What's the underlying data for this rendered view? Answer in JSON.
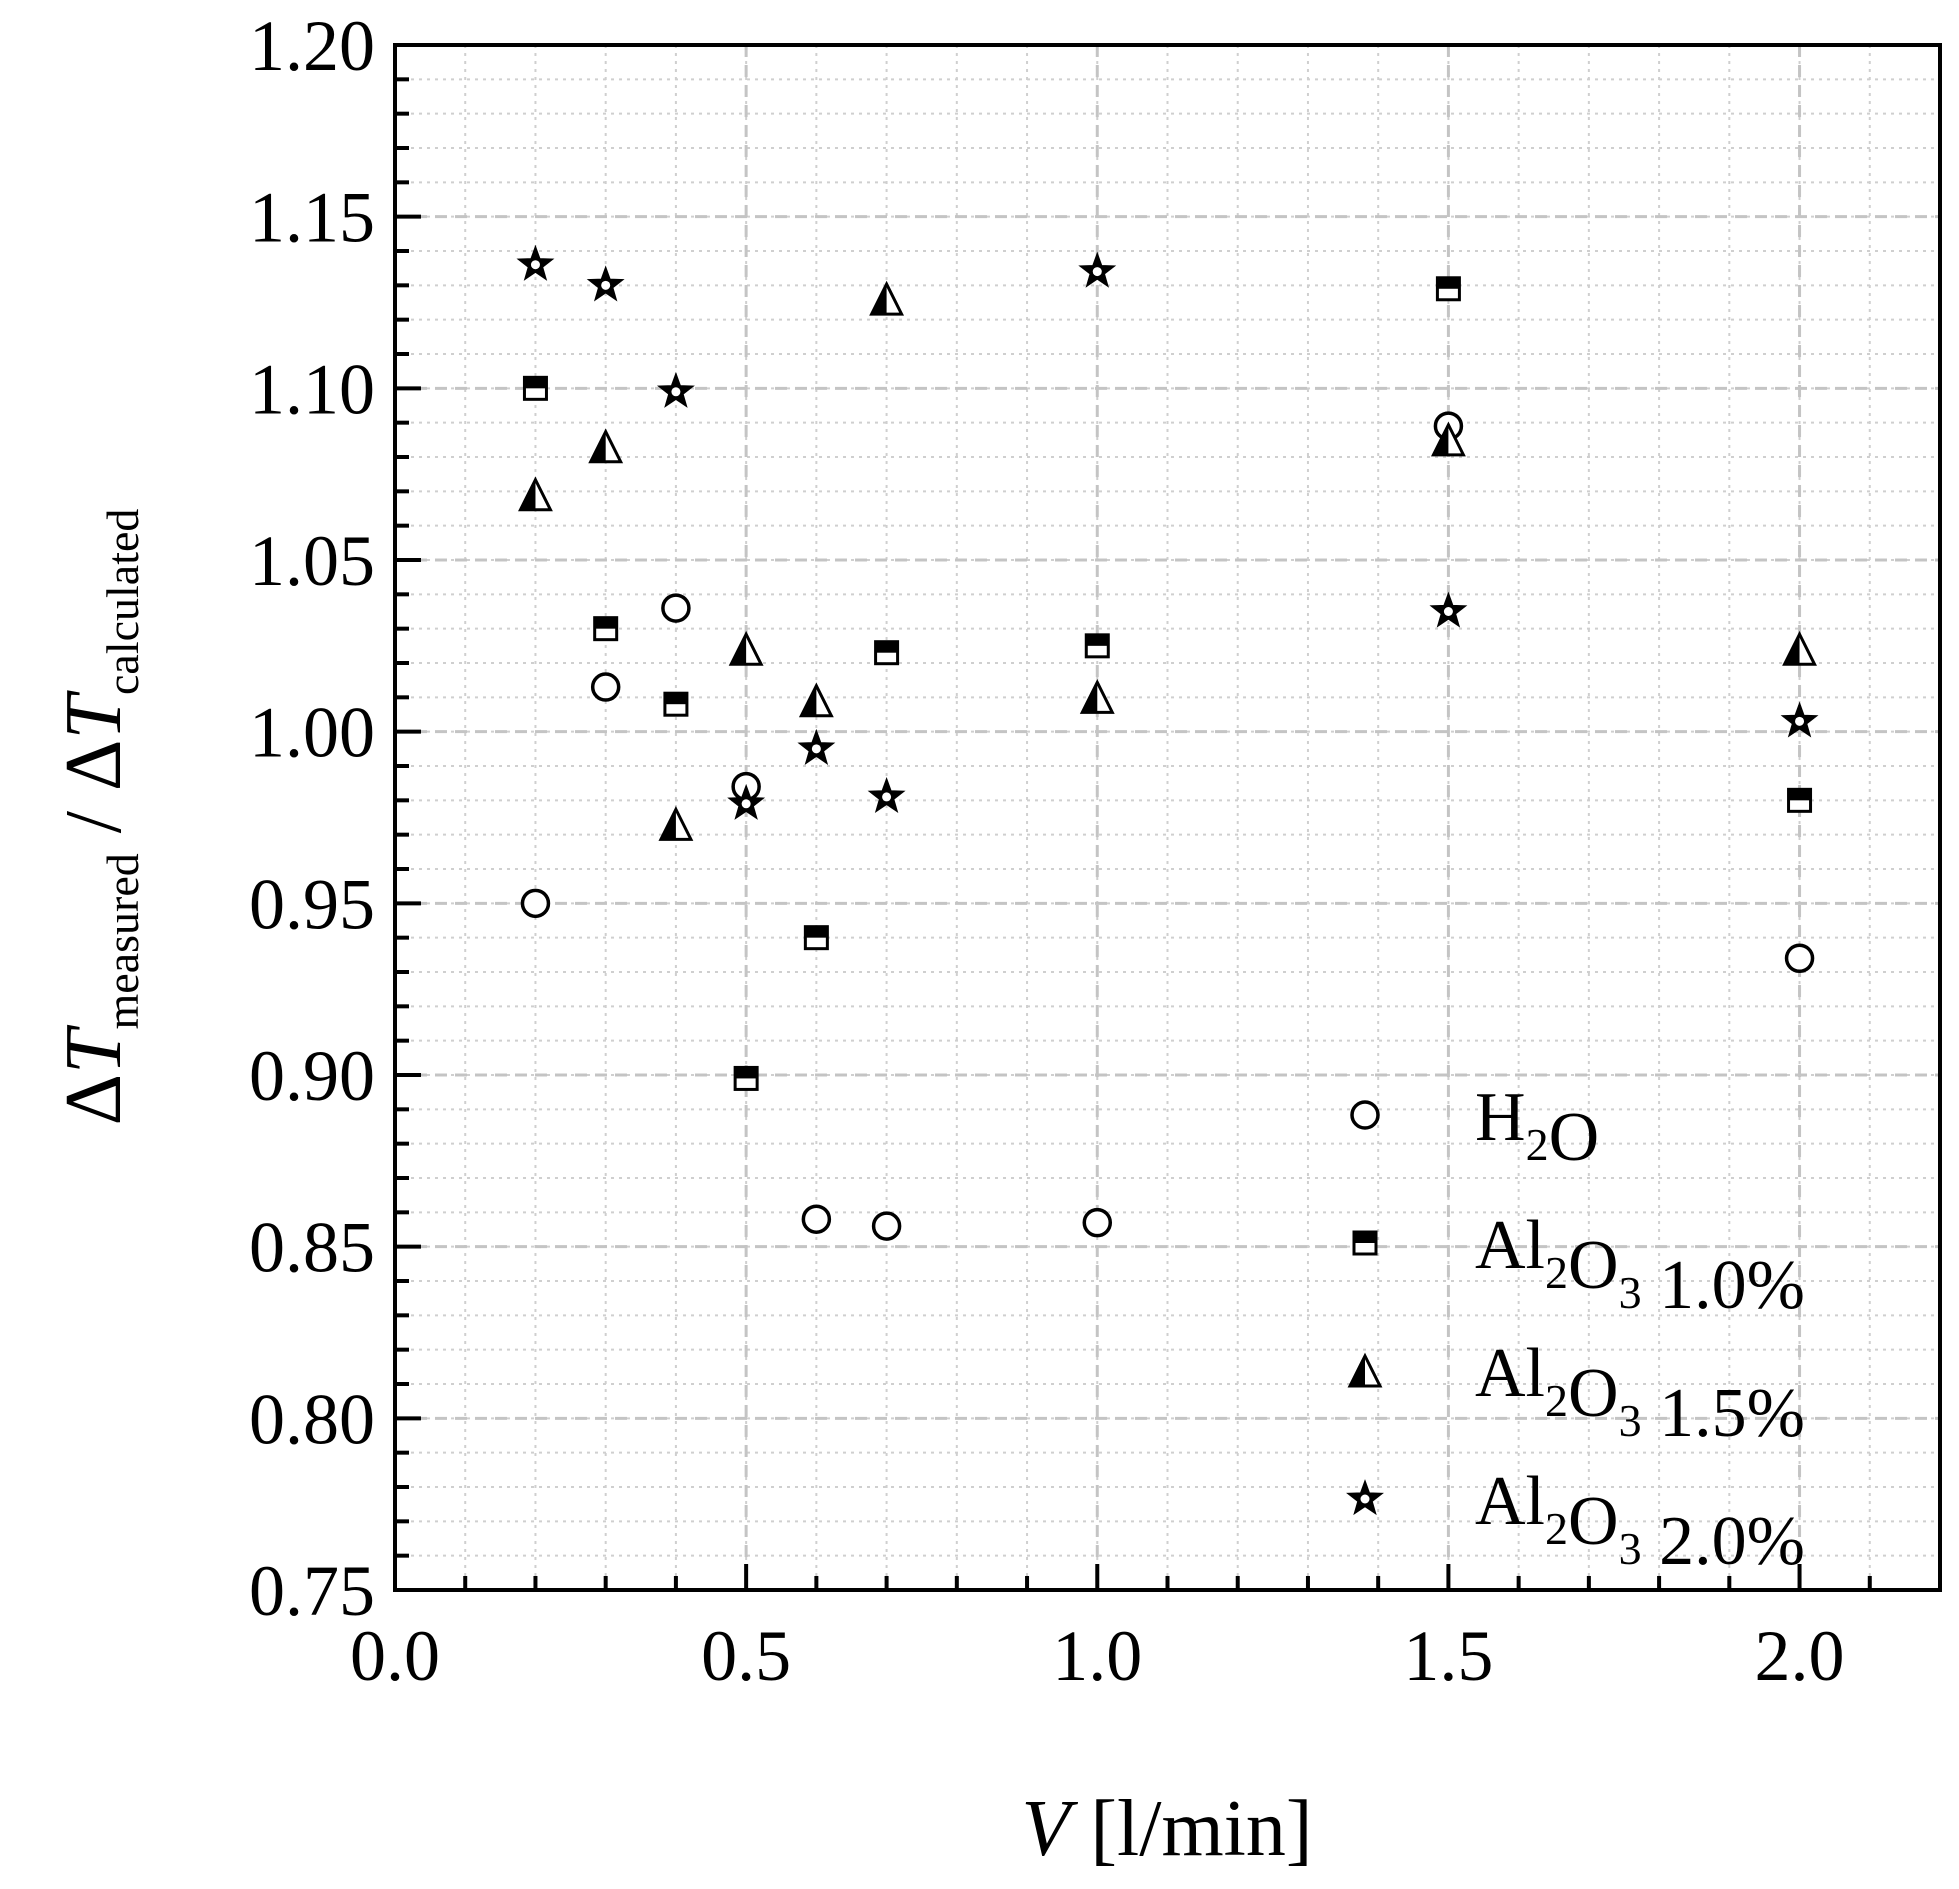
{
  "chart_data": {
    "type": "scatter",
    "title": "",
    "xlabel": {
      "var": "V",
      "unit": " [l/min]"
    },
    "ylabel": {
      "delta": "Δ",
      "var": "T",
      "sub1": "measured",
      "sep": " / ",
      "sub2": "calculated"
    },
    "xlim": [
      0.0,
      2.2
    ],
    "ylim": [
      0.75,
      1.2
    ],
    "x_ticks": [
      "0.0",
      "0.5",
      "1.0",
      "1.5",
      "2.0"
    ],
    "x_tick_values": [
      0.0,
      0.5,
      1.0,
      1.5,
      2.0
    ],
    "y_ticks": [
      "0.75",
      "0.80",
      "0.85",
      "0.90",
      "0.95",
      "1.00",
      "1.05",
      "1.10",
      "1.15",
      "1.20"
    ],
    "y_tick_values": [
      0.75,
      0.8,
      0.85,
      0.9,
      0.95,
      1.0,
      1.05,
      1.1,
      1.15,
      1.2
    ],
    "grid": true,
    "legend_position": "bottom-right",
    "series": [
      {
        "name": "H2O",
        "label_parts": [
          {
            "t": "H"
          },
          {
            "t": "2",
            "sub": true
          },
          {
            "t": "O"
          }
        ],
        "marker": "circle",
        "x": [
          0.2,
          0.3,
          0.4,
          0.5,
          0.6,
          0.7,
          1.0,
          1.5,
          2.0
        ],
        "y": [
          0.95,
          1.013,
          1.036,
          0.984,
          0.858,
          0.856,
          0.857,
          1.089,
          0.934
        ]
      },
      {
        "name": "Al2O3 1.0%",
        "label_parts": [
          {
            "t": "Al"
          },
          {
            "t": "2",
            "sub": true
          },
          {
            "t": "O"
          },
          {
            "t": "3",
            "sub": true
          },
          {
            "t": " 1.0%"
          }
        ],
        "marker": "square-half",
        "x": [
          0.2,
          0.3,
          0.4,
          0.5,
          0.6,
          0.7,
          1.0,
          1.5,
          2.0
        ],
        "y": [
          1.1,
          1.03,
          1.008,
          0.899,
          0.94,
          1.023,
          1.025,
          1.129,
          0.98
        ]
      },
      {
        "name": "Al2O3 1.5%",
        "label_parts": [
          {
            "t": "Al"
          },
          {
            "t": "2",
            "sub": true
          },
          {
            "t": "O"
          },
          {
            "t": "3",
            "sub": true
          },
          {
            "t": " 1.5%"
          }
        ],
        "marker": "triangle-half",
        "x": [
          0.2,
          0.3,
          0.4,
          0.5,
          0.6,
          0.7,
          1.0,
          1.5,
          2.0
        ],
        "y": [
          1.069,
          1.083,
          0.973,
          1.024,
          1.009,
          1.126,
          1.01,
          1.085,
          1.024
        ]
      },
      {
        "name": "Al2O3 2.0%",
        "label_parts": [
          {
            "t": "Al"
          },
          {
            "t": "2",
            "sub": true
          },
          {
            "t": "O"
          },
          {
            "t": "3",
            "sub": true
          },
          {
            "t": " 2.0%"
          }
        ],
        "marker": "star",
        "x": [
          0.2,
          0.3,
          0.4,
          0.5,
          0.6,
          0.7,
          1.0,
          1.5,
          2.0
        ],
        "y": [
          1.136,
          1.13,
          1.099,
          0.979,
          0.995,
          0.981,
          1.134,
          1.035,
          1.003
        ]
      }
    ]
  }
}
